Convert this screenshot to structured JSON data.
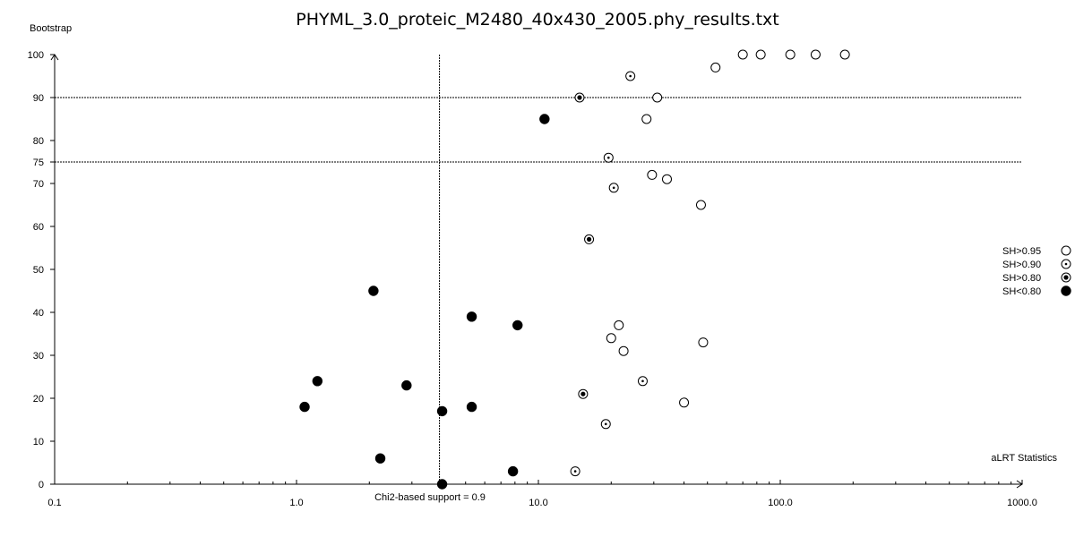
{
  "chart_data": {
    "type": "scatter",
    "title": "PHYML_3.0_proteic_M2480_40x430_2005.phy_results.txt",
    "xlabel": "aLRT Statistics",
    "ylabel": "Bootstrap",
    "x_scale": "log",
    "xlim": [
      0.1,
      1000.0
    ],
    "ylim": [
      0,
      100
    ],
    "x_ticks": [
      "0.1",
      "1.0",
      "10.0",
      "100.0",
      "1000.0"
    ],
    "y_ticks": [
      "0",
      "10",
      "20",
      "30",
      "40",
      "50",
      "60",
      "70",
      "75",
      "80",
      "90",
      "100"
    ],
    "reference_lines": {
      "horizontal": [
        75,
        90
      ],
      "vertical": {
        "x": 3.9,
        "label": "Chi2-based support = 0.9"
      }
    },
    "legend_position": "right",
    "series": [
      {
        "name": "SH>0.95",
        "marker": "open-circle",
        "points": [
          [
            70,
            100
          ],
          [
            83,
            100
          ],
          [
            110,
            100
          ],
          [
            140,
            100
          ],
          [
            185,
            100
          ],
          [
            54,
            97
          ],
          [
            31,
            90
          ],
          [
            28,
            85
          ],
          [
            34,
            71
          ],
          [
            29.5,
            72
          ],
          [
            47,
            65
          ],
          [
            21.5,
            37
          ],
          [
            20,
            34
          ],
          [
            22.5,
            31
          ],
          [
            48,
            33
          ],
          [
            40,
            19
          ]
        ]
      },
      {
        "name": "SH>0.90",
        "marker": "small-dot-circle",
        "points": [
          [
            24,
            95
          ],
          [
            19.5,
            76
          ],
          [
            20.5,
            69
          ],
          [
            27,
            24
          ],
          [
            19,
            14
          ],
          [
            14.2,
            3
          ]
        ]
      },
      {
        "name": "SH>0.80",
        "marker": "large-dot-circle",
        "points": [
          [
            14.8,
            90
          ],
          [
            16.2,
            57
          ],
          [
            15.3,
            21
          ]
        ]
      },
      {
        "name": "SH<0.80",
        "marker": "filled-circle",
        "points": [
          [
            10.6,
            85
          ],
          [
            2.08,
            45
          ],
          [
            5.3,
            39
          ],
          [
            8.2,
            37
          ],
          [
            1.22,
            24
          ],
          [
            2.85,
            23
          ],
          [
            1.08,
            18
          ],
          [
            5.3,
            18
          ],
          [
            4.0,
            17
          ],
          [
            2.22,
            6
          ],
          [
            7.85,
            3
          ],
          [
            4.0,
            0
          ]
        ]
      }
    ]
  }
}
